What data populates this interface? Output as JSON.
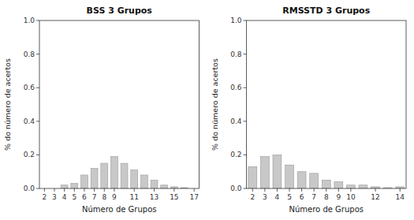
{
  "chart_data": [
    {
      "type": "bar",
      "title": "BSS 3 Grupos",
      "x_label": "Número de Grupos",
      "y_label": "% do número de acertos",
      "x": [
        2,
        3,
        4,
        5,
        6,
        7,
        8,
        9,
        10,
        11,
        12,
        13,
        14,
        15,
        16,
        17
      ],
      "values": [
        0.0,
        0.0,
        0.02,
        0.03,
        0.08,
        0.12,
        0.15,
        0.19,
        0.15,
        0.11,
        0.08,
        0.05,
        0.02,
        0.01,
        0.005,
        0.0
      ],
      "color": "#c8c8c8",
      "xlim": [
        1.5,
        17.5
      ],
      "xticks": [
        2,
        3,
        4,
        5,
        6,
        7,
        8,
        9,
        11,
        13,
        15,
        17
      ],
      "ylim": [
        0.0,
        1.0
      ],
      "yticks": [
        {
          "value": 0.0,
          "label": "0.0"
        },
        0.2,
        0.4,
        0.6,
        0.8,
        {
          "value": 1.0,
          "label": "1.0"
        }
      ]
    },
    {
      "type": "bar",
      "title": "RMSSTD 3 Grupos",
      "x_label": "Número de Grupos",
      "y_label": "% do número de acertos",
      "x": [
        2,
        3,
        4,
        5,
        6,
        7,
        8,
        9,
        10,
        11,
        12,
        13,
        14
      ],
      "values": [
        0.13,
        0.19,
        0.2,
        0.14,
        0.1,
        0.09,
        0.05,
        0.04,
        0.02,
        0.02,
        0.01,
        0.005,
        0.01
      ],
      "color": "#c8c8c8",
      "xlim": [
        1.5,
        14.5
      ],
      "xticks": [
        2,
        3,
        4,
        5,
        6,
        7,
        8,
        9,
        10,
        12,
        14
      ],
      "ylim": [
        0.0,
        1.0
      ],
      "yticks": [
        {
          "value": 0.0,
          "label": "0.0"
        },
        0.2,
        0.4,
        0.6,
        0.8,
        {
          "value": 1.0,
          "label": "1.0"
        }
      ]
    }
  ]
}
